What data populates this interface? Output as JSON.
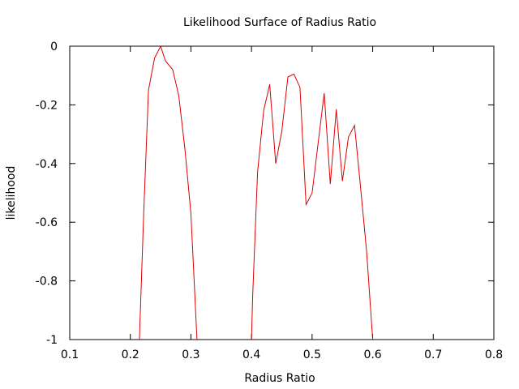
{
  "chart_data": {
    "type": "line",
    "title": "Likelihood Surface of Radius Ratio",
    "xlabel": "Radius Ratio",
    "ylabel": "likelihood",
    "xlim": [
      0.1,
      0.8
    ],
    "ylim": [
      -1,
      0
    ],
    "xticks": [
      "0.1",
      "0.2",
      "0.3",
      "0.4",
      "0.5",
      "0.6",
      "0.7",
      "0.8"
    ],
    "yticks": [
      "0",
      "-0.2",
      "-0.4",
      "-0.6",
      "-0.8",
      "-1"
    ],
    "grid": false,
    "legend": "none",
    "line_color": "#dd0000",
    "series": [
      {
        "segments": [
          [
            [
              0.215,
              -1.0
            ],
            [
              0.222,
              -0.57
            ],
            [
              0.23,
              -0.15
            ],
            [
              0.24,
              -0.04
            ],
            [
              0.25,
              0.0
            ],
            [
              0.258,
              -0.05
            ],
            [
              0.27,
              -0.08
            ],
            [
              0.28,
              -0.17
            ],
            [
              0.29,
              -0.35
            ],
            [
              0.3,
              -0.57
            ],
            [
              0.31,
              -1.0
            ]
          ],
          [
            [
              0.4,
              -1.0
            ],
            [
              0.402,
              -0.85
            ],
            [
              0.41,
              -0.43
            ],
            [
              0.42,
              -0.22
            ],
            [
              0.43,
              -0.13
            ],
            [
              0.44,
              -0.4
            ],
            [
              0.45,
              -0.29
            ],
            [
              0.46,
              -0.105
            ],
            [
              0.47,
              -0.095
            ],
            [
              0.48,
              -0.14
            ],
            [
              0.49,
              -0.54
            ],
            [
              0.5,
              -0.5
            ],
            [
              0.51,
              -0.33
            ],
            [
              0.52,
              -0.16
            ],
            [
              0.53,
              -0.47
            ],
            [
              0.54,
              -0.215
            ],
            [
              0.55,
              -0.46
            ],
            [
              0.56,
              -0.31
            ],
            [
              0.57,
              -0.27
            ],
            [
              0.58,
              -0.48
            ],
            [
              0.59,
              -0.7
            ],
            [
              0.6,
              -1.0
            ]
          ]
        ]
      }
    ]
  }
}
